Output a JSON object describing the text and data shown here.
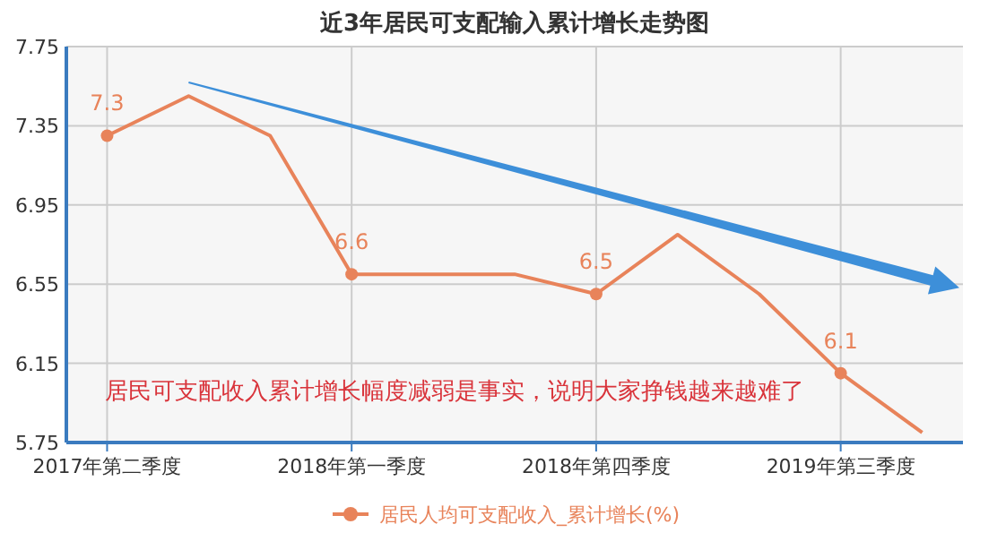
{
  "chart_data": {
    "type": "line",
    "title": "近3年居民可支配输入累计增长走势图",
    "categories": [
      "2017年第二季度",
      null,
      null,
      "2018年第一季度",
      null,
      null,
      "2018年第四季度",
      null,
      null,
      "2019年第三季度",
      null
    ],
    "series": [
      {
        "name": "居民人均可支配收入_累计增长(%)",
        "color": "#e8835a",
        "values": [
          7.3,
          7.5,
          7.3,
          6.6,
          6.6,
          6.6,
          6.5,
          6.8,
          6.5,
          6.1,
          5.8
        ],
        "value_labels": [
          "7.3",
          null,
          null,
          "6.6",
          null,
          null,
          "6.5",
          null,
          null,
          "6.1",
          null
        ]
      }
    ],
    "ylim": [
      5.75,
      7.75
    ],
    "yticks": [
      5.75,
      6.15,
      6.55,
      6.95,
      7.35,
      7.75
    ],
    "grid": true,
    "legend": "bottom",
    "line_style": "solid",
    "annotations": [
      "居民可支配收入累计增长幅度减弱是事实，说明大家挣钱越来越难了"
    ]
  }
}
